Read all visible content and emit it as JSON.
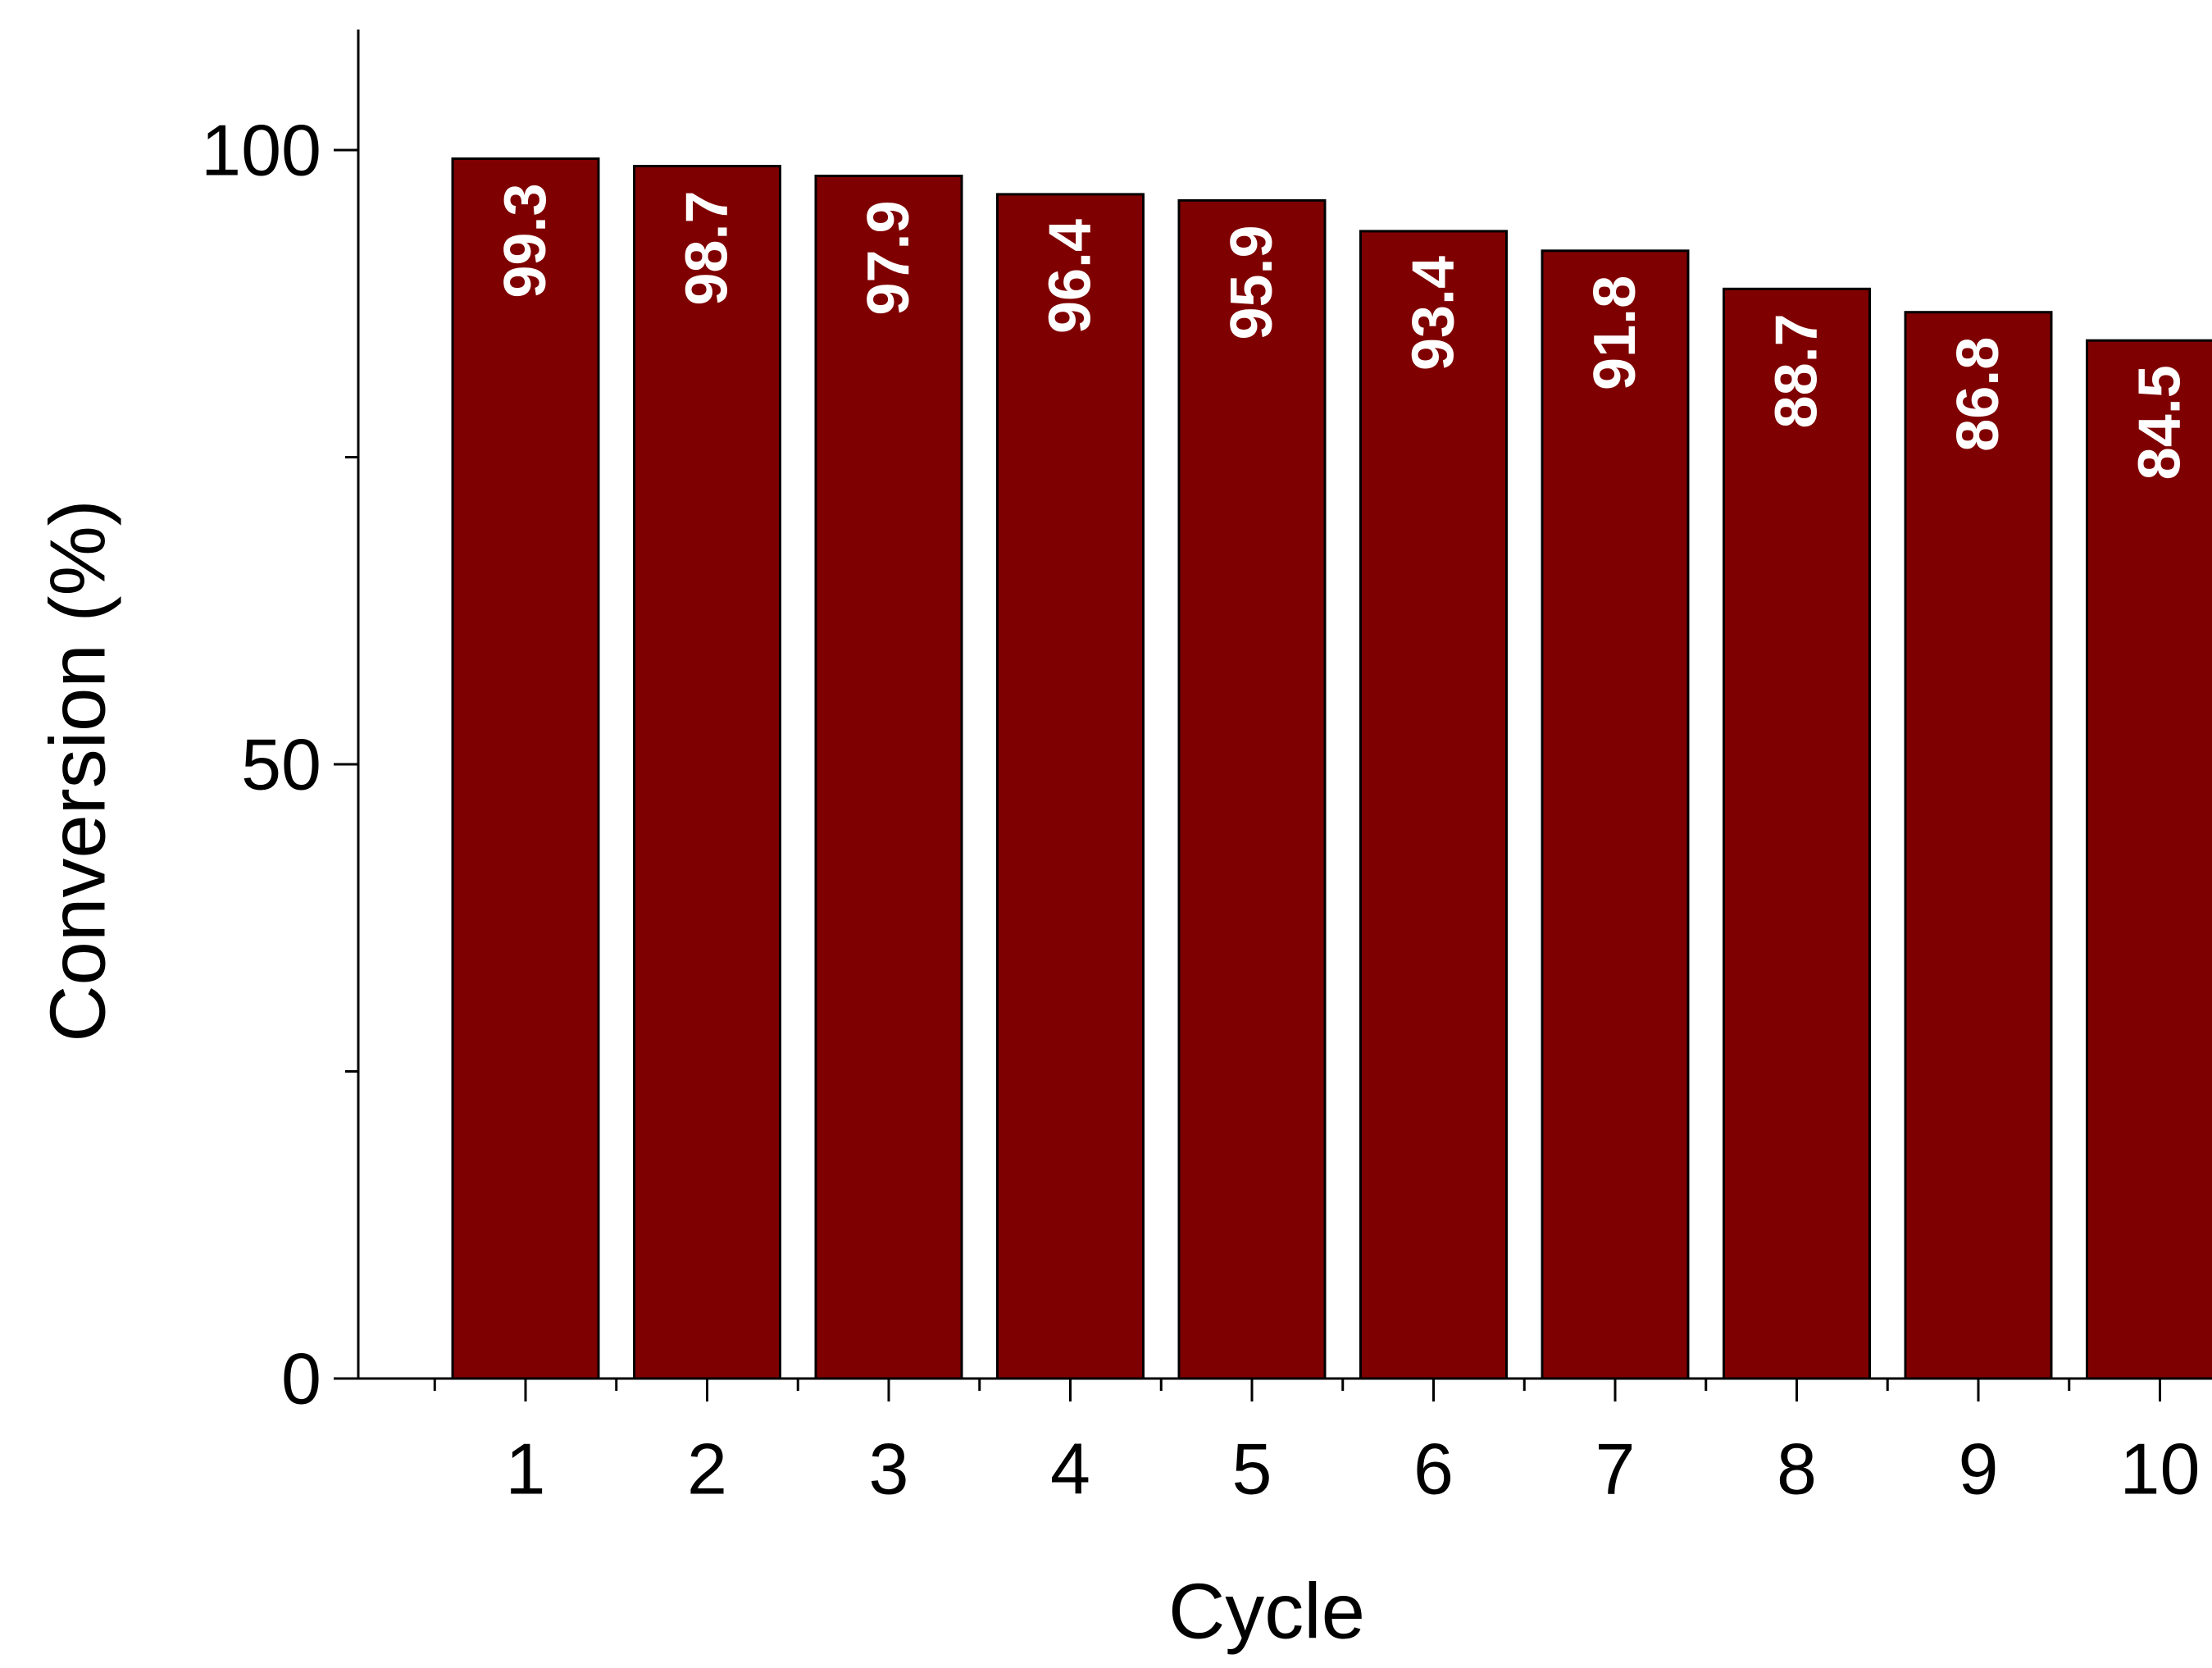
{
  "chart_data": {
    "type": "bar",
    "title": "",
    "xlabel": "Cycle",
    "ylabel": "Conversion (%)",
    "categories": [
      "1",
      "2",
      "3",
      "4",
      "5",
      "6",
      "7",
      "8",
      "9",
      "10"
    ],
    "values": [
      99.3,
      98.7,
      97.9,
      96.4,
      95.9,
      93.4,
      91.8,
      88.7,
      86.8,
      84.5
    ],
    "data_labels": [
      "99.3",
      "98.7",
      "97.9",
      "96.4",
      "95.9",
      "93.4",
      "91.8",
      "88.7",
      "86.8",
      "84.5"
    ],
    "ylim": [
      0,
      112
    ],
    "y_major_ticks": [
      0,
      50,
      100
    ],
    "y_minor_ticks": [
      25,
      75
    ],
    "y_tick_labels": [
      "0",
      "50",
      "100"
    ],
    "grid": false,
    "legend": "none",
    "bar_color": "#7f0000",
    "bar_edge_color": "#000000",
    "label_color": "#ffffff",
    "label_orientation": "rotated -90, inside top of bar"
  }
}
